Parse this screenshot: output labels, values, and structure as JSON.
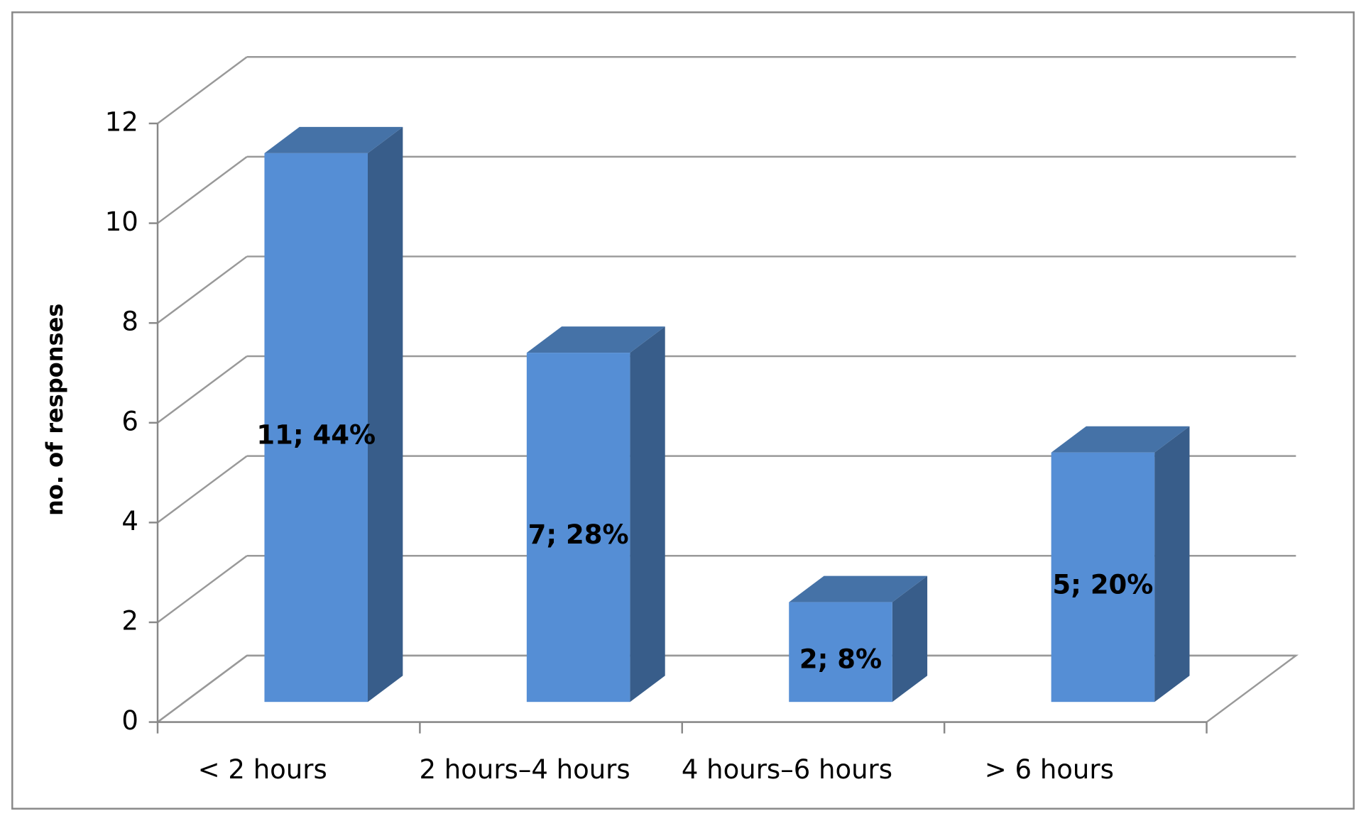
{
  "chart_data": {
    "type": "bar3d",
    "y_label": "no. of responses",
    "categories": [
      "< 2 hours",
      "2 hours–4 hours",
      "4 hours–6 hours",
      "> 6 hours"
    ],
    "values": [
      11,
      7,
      2,
      5
    ],
    "value_labels": [
      "11; 44%",
      "7; 28%",
      "2; 8%",
      "5; 20%"
    ],
    "color": "#558ed5",
    "ylim": [
      0,
      12
    ],
    "yticks": [
      0,
      2,
      4,
      6,
      8,
      10,
      12
    ],
    "grid": true
  }
}
